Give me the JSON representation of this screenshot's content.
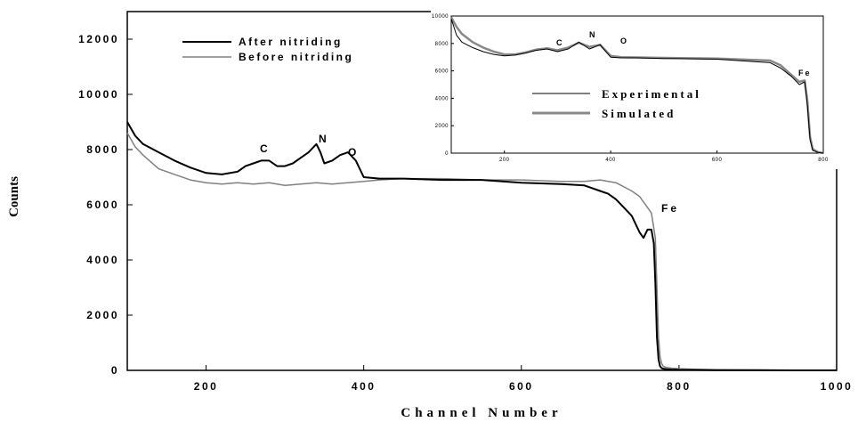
{
  "chart_data": [
    {
      "type": "line",
      "xlabel": "Channel Number",
      "ylabel": "Counts",
      "xlim": [
        100,
        1000
      ],
      "ylim": [
        0,
        13000
      ],
      "xticks": [
        200,
        400,
        600,
        800,
        1000
      ],
      "yticks": [
        0,
        2000,
        4000,
        6000,
        8000,
        10000,
        12000
      ],
      "xtick_labels": [
        "200",
        "400",
        "600",
        "800",
        "1000"
      ],
      "ytick_labels": [
        "0",
        "2000",
        "4000",
        "6000",
        "8000",
        "10000",
        "12000"
      ],
      "legend_position": "top-left",
      "grid": false,
      "series": [
        {
          "name": "After nitriding",
          "color": "#000000",
          "x": [
            100,
            110,
            120,
            140,
            160,
            180,
            200,
            220,
            240,
            250,
            260,
            270,
            280,
            290,
            300,
            310,
            320,
            330,
            340,
            345,
            350,
            360,
            370,
            380,
            390,
            400,
            420,
            450,
            500,
            550,
            600,
            650,
            680,
            700,
            710,
            720,
            730,
            740,
            750,
            755,
            760,
            765,
            768,
            770,
            772,
            774,
            776,
            778,
            780,
            785,
            790,
            800,
            850,
            900,
            950,
            1000
          ],
          "values": [
            9000,
            8500,
            8200,
            7900,
            7600,
            7350,
            7150,
            7100,
            7200,
            7400,
            7500,
            7600,
            7600,
            7400,
            7400,
            7500,
            7700,
            7900,
            8200,
            7900,
            7500,
            7600,
            7800,
            7900,
            7600,
            7000,
            6950,
            6950,
            6900,
            6900,
            6800,
            6750,
            6700,
            6500,
            6400,
            6200,
            5900,
            5600,
            5000,
            4800,
            5100,
            5100,
            4600,
            3200,
            1200,
            400,
            150,
            80,
            60,
            40,
            30,
            20,
            10,
            5,
            0,
            0
          ]
        },
        {
          "name": "Before nitriding",
          "color": "#808080",
          "x": [
            100,
            110,
            120,
            140,
            160,
            180,
            200,
            220,
            240,
            260,
            280,
            300,
            320,
            340,
            360,
            380,
            400,
            420,
            450,
            500,
            550,
            600,
            650,
            680,
            700,
            720,
            740,
            750,
            760,
            765,
            770,
            772,
            774,
            776,
            778,
            780,
            785,
            790,
            800,
            820,
            850,
            900,
            950,
            1000
          ],
          "values": [
            8600,
            8100,
            7800,
            7300,
            7100,
            6900,
            6800,
            6750,
            6800,
            6750,
            6800,
            6700,
            6750,
            6800,
            6750,
            6800,
            6850,
            6900,
            6950,
            6950,
            6900,
            6900,
            6850,
            6850,
            6900,
            6800,
            6500,
            6300,
            5900,
            5700,
            4800,
            3000,
            1200,
            500,
            250,
            150,
            100,
            80,
            60,
            40,
            20,
            10,
            5,
            0
          ]
        }
      ],
      "annotations": [
        "C",
        "N",
        "O",
        "Fe"
      ]
    },
    {
      "type": "line",
      "xlim": [
        100,
        800
      ],
      "ylim": [
        0,
        10000
      ],
      "xticks": [
        200,
        400,
        600,
        800
      ],
      "yticks": [
        0,
        2000,
        4000,
        6000,
        8000,
        10000
      ],
      "xtick_labels": [
        "200",
        "400",
        "600",
        "800"
      ],
      "ytick_labels": [
        "0",
        "2000",
        "4000",
        "6000",
        "8000",
        "10000"
      ],
      "legend_position": "center-left",
      "grid": false,
      "series": [
        {
          "name": "Experimental",
          "color": "#000000",
          "x": [
            100,
            110,
            120,
            140,
            160,
            180,
            200,
            220,
            240,
            260,
            280,
            300,
            320,
            340,
            360,
            380,
            400,
            420,
            450,
            500,
            600,
            700,
            720,
            740,
            755,
            765,
            770,
            775,
            780,
            790,
            800
          ],
          "values": [
            9800,
            8600,
            8100,
            7700,
            7400,
            7200,
            7100,
            7150,
            7300,
            7500,
            7600,
            7400,
            7600,
            8100,
            7600,
            7900,
            7000,
            6950,
            6950,
            6900,
            6850,
            6600,
            6200,
            5600,
            5000,
            5200,
            3500,
            1000,
            200,
            50,
            0
          ]
        },
        {
          "name": "Simulated",
          "color": "#888888",
          "x": [
            100,
            110,
            120,
            140,
            160,
            180,
            200,
            220,
            240,
            260,
            280,
            300,
            320,
            340,
            360,
            380,
            400,
            420,
            450,
            500,
            600,
            700,
            720,
            740,
            755,
            765,
            770,
            775,
            780,
            790,
            800
          ],
          "values": [
            9900,
            9200,
            8700,
            8100,
            7700,
            7400,
            7200,
            7200,
            7350,
            7550,
            7650,
            7500,
            7700,
            8050,
            7750,
            7900,
            7100,
            7000,
            6980,
            6950,
            6900,
            6750,
            6400,
            5700,
            5200,
            5300,
            3800,
            1200,
            300,
            80,
            0
          ]
        }
      ],
      "annotations": [
        "C",
        "N",
        "O",
        "Fe"
      ]
    }
  ]
}
